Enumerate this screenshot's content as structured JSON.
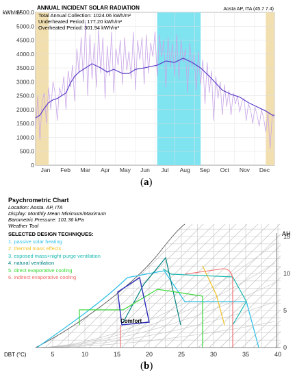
{
  "chart_data": [
    {
      "type": "area",
      "title": "ANNUAL INCIDENT SOLAR RADIATION",
      "location": "Aosta AP, ITA (45.7 7.4)",
      "ylabel": "kWh/m²",
      "ylim": [
        0,
        5500
      ],
      "yticks": [
        "0",
        "500.0",
        "1000.0",
        "1500.0",
        "2000.0",
        "2500.0",
        "3000.0",
        "3500.0",
        "4000.0",
        "4500.0",
        "5000.0",
        "5500.0"
      ],
      "categories": [
        "Jan",
        "Feb",
        "Mar",
        "Apr",
        "May",
        "Jun",
        "Jul",
        "Aug",
        "Sep",
        "Oct",
        "Nov",
        "Dec"
      ],
      "stats": [
        "Total Annual Collection: 1024.06 kWh/m²",
        "Underheated Period: 177.20 kWh/m²",
        "Overheated Period: 301.94 kWh/m²"
      ],
      "underheated_bands": [
        [
          1,
          1.6
        ],
        [
          11.6,
          12
        ]
      ],
      "overheated_band": [
        6.6,
        8.6
      ],
      "average": [
        [
          1,
          1700
        ],
        [
          1.2,
          1800
        ],
        [
          1.4,
          2050
        ],
        [
          1.6,
          2250
        ],
        [
          1.8,
          2350
        ],
        [
          2,
          2400
        ],
        [
          2.2,
          2500
        ],
        [
          2.4,
          2600
        ],
        [
          2.6,
          2950
        ],
        [
          2.8,
          3200
        ],
        [
          3,
          3350
        ],
        [
          3.3,
          3500
        ],
        [
          3.6,
          3650
        ],
        [
          4,
          3500
        ],
        [
          4.3,
          3350
        ],
        [
          4.6,
          3450
        ],
        [
          5,
          3300
        ],
        [
          5.3,
          3300
        ],
        [
          5.6,
          3450
        ],
        [
          6,
          3500
        ],
        [
          6.3,
          3550
        ],
        [
          6.6,
          3600
        ],
        [
          7,
          3750
        ],
        [
          7.4,
          3700
        ],
        [
          7.8,
          3850
        ],
        [
          8.2,
          3700
        ],
        [
          8.6,
          3500
        ],
        [
          9,
          3200
        ],
        [
          9.3,
          2950
        ],
        [
          9.6,
          2700
        ],
        [
          10,
          2550
        ],
        [
          10.4,
          2450
        ],
        [
          10.8,
          2250
        ],
        [
          11.2,
          2100
        ],
        [
          11.6,
          1950
        ],
        [
          11.9,
          1800
        ],
        [
          12,
          1800
        ]
      ],
      "daily": [
        [
          1,
          1300
        ],
        [
          1.1,
          2500
        ],
        [
          1.2,
          900
        ],
        [
          1.3,
          2300
        ],
        [
          1.4,
          2600
        ],
        [
          1.5,
          1500
        ],
        [
          1.6,
          2800
        ],
        [
          1.7,
          2000
        ],
        [
          1.8,
          3000
        ],
        [
          1.9,
          2600
        ],
        [
          2,
          1600
        ],
        [
          2.1,
          2800
        ],
        [
          2.2,
          2500
        ],
        [
          2.3,
          3200
        ],
        [
          2.4,
          2000
        ],
        [
          2.5,
          3400
        ],
        [
          2.6,
          2800
        ],
        [
          2.7,
          3600
        ],
        [
          2.8,
          2300
        ],
        [
          2.9,
          4200
        ],
        [
          3,
          3300
        ],
        [
          3.1,
          4600
        ],
        [
          3.2,
          3000
        ],
        [
          3.3,
          5200
        ],
        [
          3.4,
          2500
        ],
        [
          3.5,
          4700
        ],
        [
          3.6,
          3100
        ],
        [
          3.7,
          4400
        ],
        [
          3.8,
          2800
        ],
        [
          3.9,
          4900
        ],
        [
          4,
          3300
        ],
        [
          4.1,
          4600
        ],
        [
          4.2,
          2400
        ],
        [
          4.3,
          4300
        ],
        [
          4.4,
          3200
        ],
        [
          4.5,
          4800
        ],
        [
          4.6,
          2600
        ],
        [
          4.7,
          4200
        ],
        [
          4.8,
          3600
        ],
        [
          4.9,
          4500
        ],
        [
          5,
          2900
        ],
        [
          5.1,
          4600
        ],
        [
          5.2,
          3400
        ],
        [
          5.3,
          4100
        ],
        [
          5.4,
          3100
        ],
        [
          5.5,
          4800
        ],
        [
          5.6,
          2700
        ],
        [
          5.7,
          4500
        ],
        [
          5.8,
          3800
        ],
        [
          5.9,
          4600
        ],
        [
          6,
          2900
        ],
        [
          6.1,
          4700
        ],
        [
          6.2,
          3300
        ],
        [
          6.3,
          4400
        ],
        [
          6.4,
          3900
        ],
        [
          6.5,
          4800
        ],
        [
          6.6,
          3200
        ],
        [
          6.7,
          4700
        ],
        [
          6.8,
          3900
        ],
        [
          6.9,
          4500
        ],
        [
          7,
          2800
        ],
        [
          7.1,
          4600
        ],
        [
          7.2,
          3500
        ],
        [
          7.3,
          4400
        ],
        [
          7.4,
          3200
        ],
        [
          7.5,
          4700
        ],
        [
          7.6,
          3100
        ],
        [
          7.7,
          4500
        ],
        [
          7.8,
          3700
        ],
        [
          7.9,
          4200
        ],
        [
          8,
          2600
        ],
        [
          8.1,
          4400
        ],
        [
          8.2,
          3500
        ],
        [
          8.3,
          4000
        ],
        [
          8.4,
          2700
        ],
        [
          8.5,
          4100
        ],
        [
          8.6,
          2900
        ],
        [
          8.7,
          3800
        ],
        [
          8.8,
          2200
        ],
        [
          8.9,
          3700
        ],
        [
          9,
          2600
        ],
        [
          9.1,
          3400
        ],
        [
          9.2,
          1600
        ],
        [
          9.3,
          3200
        ],
        [
          9.4,
          2400
        ],
        [
          9.5,
          3000
        ],
        [
          9.6,
          1800
        ],
        [
          9.7,
          2900
        ],
        [
          9.8,
          2100
        ],
        [
          9.9,
          2700
        ],
        [
          10,
          1800
        ],
        [
          10.1,
          2600
        ],
        [
          10.2,
          2200
        ],
        [
          10.3,
          2500
        ],
        [
          10.4,
          1900
        ],
        [
          10.5,
          2300
        ],
        [
          10.6,
          2400
        ],
        [
          10.7,
          1600
        ],
        [
          10.8,
          2200
        ],
        [
          10.9,
          2000
        ],
        [
          11,
          1500
        ],
        [
          11.1,
          2100
        ],
        [
          11.2,
          1800
        ],
        [
          11.3,
          1400
        ],
        [
          11.4,
          2000
        ],
        [
          11.5,
          1700
        ],
        [
          11.6,
          1200
        ],
        [
          11.7,
          1900
        ],
        [
          11.8,
          600
        ],
        [
          11.9,
          1800
        ],
        [
          12,
          1700
        ]
      ]
    },
    {
      "type": "diagram",
      "title": "Psychrometric Chart",
      "info": [
        "Location: Aosta. AP, ITA",
        "Display: Monthly Mean Minimum/Maximum",
        "Barometric Pressure: 101.36 kPa",
        "Weather Tool"
      ],
      "techniques_heading": "SELECTED DESIGN TECHNIQUES:",
      "techniques": [
        {
          "label": "1. passive solar heating",
          "color": "#33c0e8"
        },
        {
          "label": "2. thermal mass effects",
          "color": "#f0c020"
        },
        {
          "label": "3. exposed mass+night-purge ventilation",
          "color": "#18b8b0"
        },
        {
          "label": "4. natural ventilation",
          "color": "#008080"
        },
        {
          "label": "5. direct evaporative cooling",
          "color": "#38d838"
        },
        {
          "label": "6. indirect evaporative cooling",
          "color": "#f06a6a"
        }
      ],
      "xlabel": "DBT (°C)",
      "xticks": [
        5,
        10,
        15,
        20,
        25,
        30,
        35,
        40
      ],
      "ylabel": "AH",
      "yticks": [
        0,
        5,
        10,
        15
      ],
      "comfort_label": "Comfort",
      "caption": "b"
    }
  ],
  "captions": {
    "a": "a",
    "b": "b"
  }
}
